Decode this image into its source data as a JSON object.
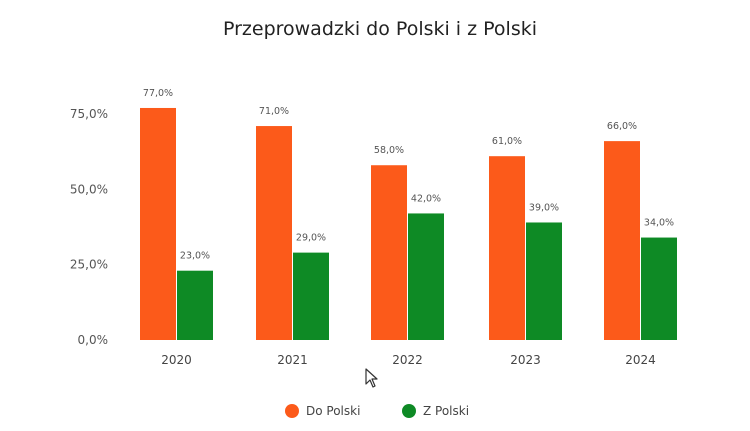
{
  "chart_data": {
    "type": "bar",
    "title": "Przeprowadzki do Polski i z Polski",
    "categories": [
      "2020",
      "2021",
      "2022",
      "2023",
      "2024"
    ],
    "series": [
      {
        "name": "Do Polski",
        "color": "#fc5a1a",
        "values": [
          77.0,
          71.0,
          58.0,
          61.0,
          66.0
        ],
        "labels": [
          "77,0%",
          "71,0%",
          "58,0%",
          "61,0%",
          "66,0%"
        ]
      },
      {
        "name": "Z Polski",
        "color": "#0e8a25",
        "values": [
          23.0,
          29.0,
          42.0,
          39.0,
          34.0
        ],
        "labels": [
          "23,0%",
          "29,0%",
          "42,0%",
          "39,0%",
          "34,0%"
        ]
      }
    ],
    "yticks": [
      {
        "value": 0,
        "label": "0,0%"
      },
      {
        "value": 25,
        "label": "25,0%"
      },
      {
        "value": 50,
        "label": "50,0%"
      },
      {
        "value": 75,
        "label": "75,0%"
      }
    ],
    "ylim": [
      0,
      75
    ],
    "grid": false,
    "legend_position": "bottom"
  }
}
